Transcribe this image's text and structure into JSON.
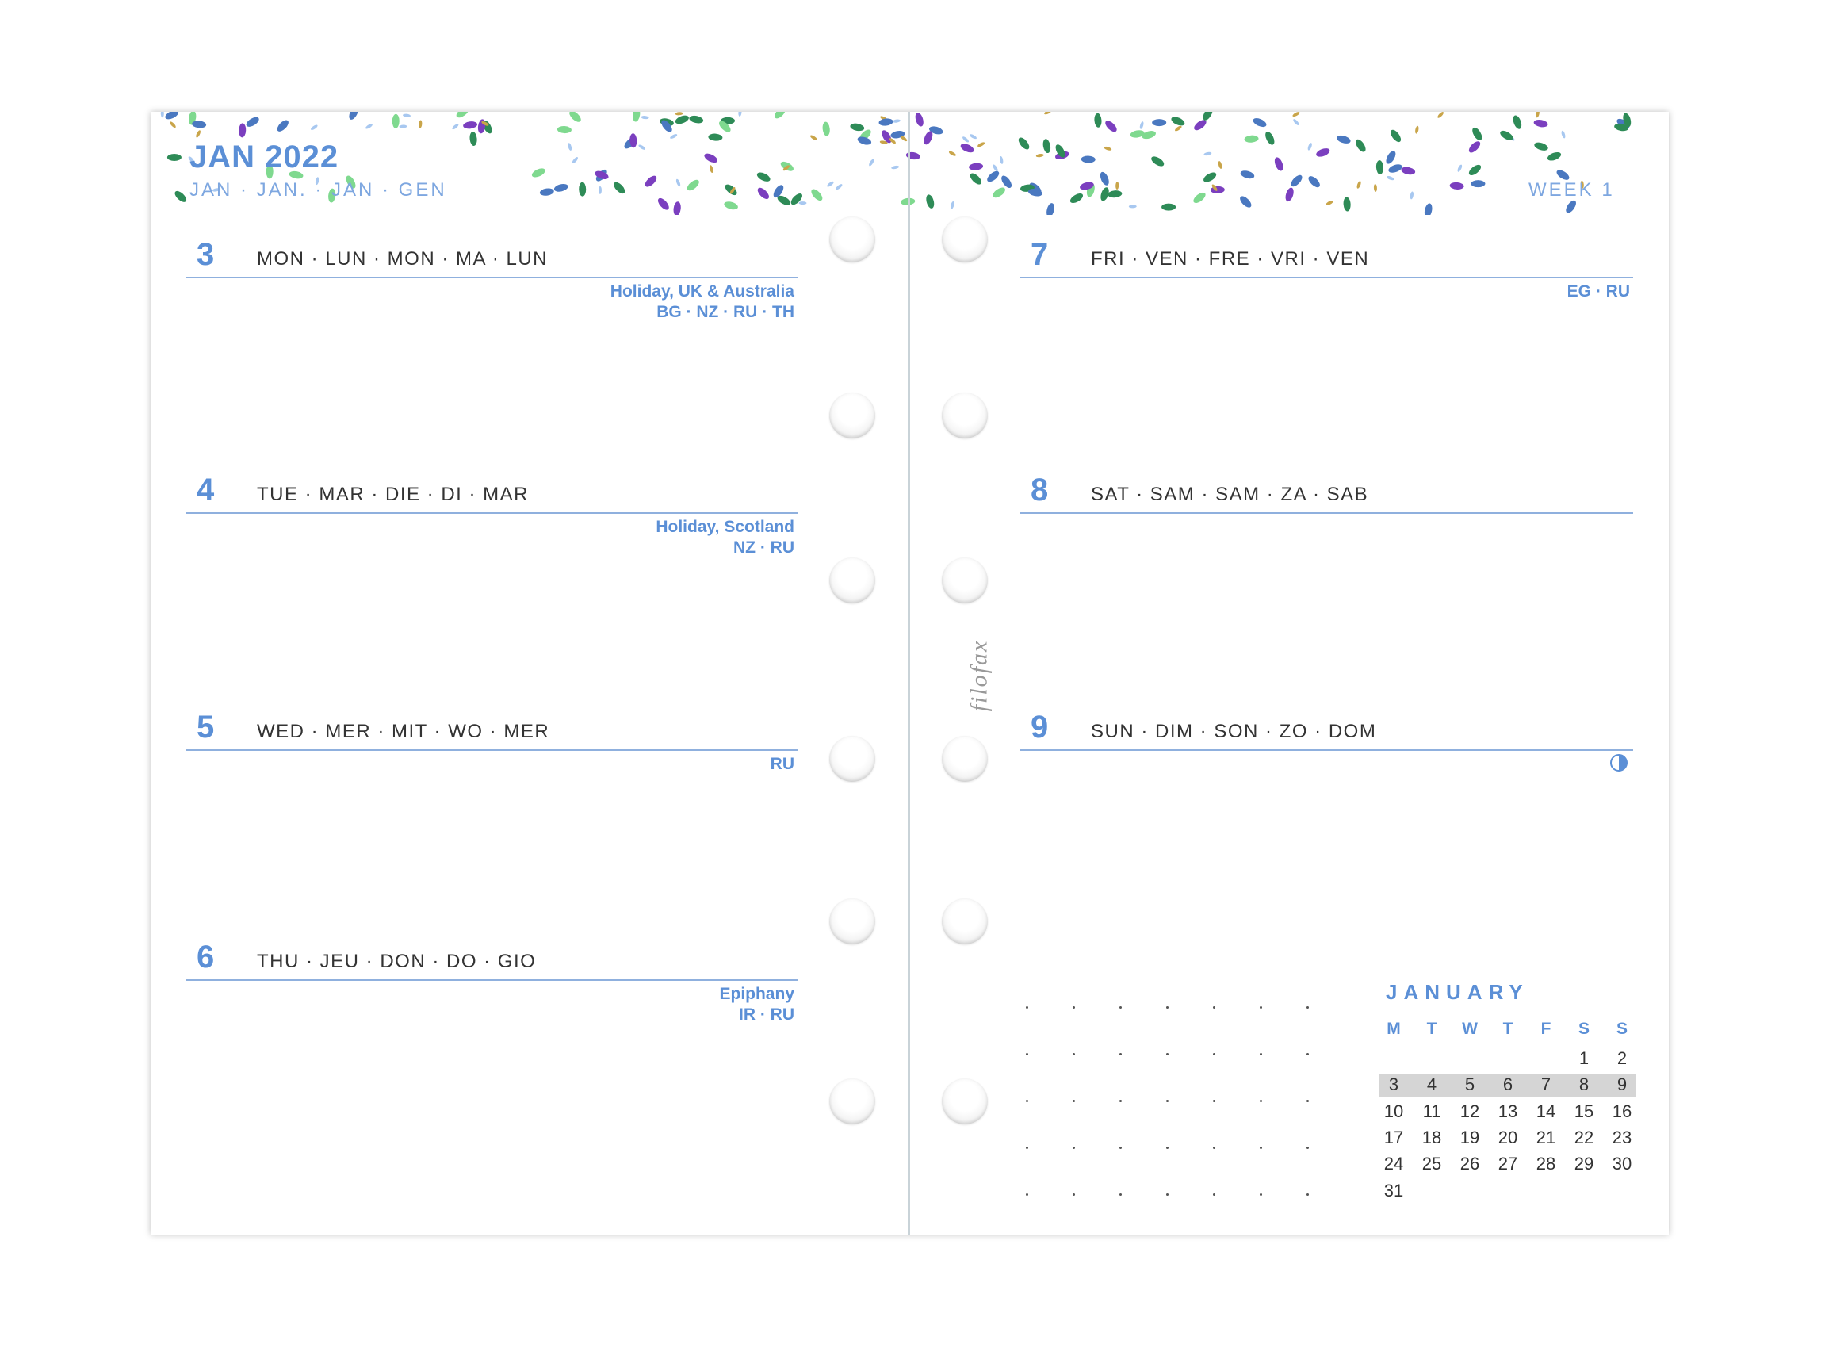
{
  "header": {
    "title": "JAN 2022",
    "subtitle": "JAN · JAN. · JAN · GEN",
    "week": "WEEK 1"
  },
  "logo": "filofax",
  "colors": {
    "accent": "#5b8fd6",
    "leaf_green": "#2e8b57",
    "leaf_light": "#7fd98f",
    "leaf_purple": "#7b3fbf",
    "leaf_blue": "#4a78c0"
  },
  "left_days": [
    {
      "num": "3",
      "names": "MON · LUN · MON · MA · LUN",
      "holiday": "Holiday, UK & Australia",
      "countries": "BG · NZ · RU · TH"
    },
    {
      "num": "4",
      "names": "TUE · MAR · DIE · DI · MAR",
      "holiday": "Holiday, Scotland",
      "countries": "NZ · RU"
    },
    {
      "num": "5",
      "names": "WED · MER · MIT · WO · MER",
      "holiday": "",
      "countries": "RU"
    },
    {
      "num": "6",
      "names": "THU · JEU · DON · DO · GIO",
      "holiday": "Epiphany",
      "countries": "IR · RU"
    }
  ],
  "right_days": [
    {
      "num": "7",
      "names": "FRI · VEN · FRE · VRI · VEN",
      "holiday": "",
      "countries": "EG · RU"
    },
    {
      "num": "8",
      "names": "SAT · SAM · SAM · ZA · SAB",
      "holiday": "",
      "countries": ""
    },
    {
      "num": "9",
      "names": "SUN · DIM · SON · ZO · DOM",
      "holiday": "",
      "countries": "",
      "icon": "half-moon-icon"
    }
  ],
  "mini_calendar": {
    "month": "JANUARY",
    "weekdays": [
      "M",
      "T",
      "W",
      "T",
      "F",
      "S",
      "S"
    ],
    "weeks": [
      [
        "",
        "",
        "",
        "",
        "",
        "1",
        "2"
      ],
      [
        "3",
        "4",
        "5",
        "6",
        "7",
        "8",
        "9"
      ],
      [
        "10",
        "11",
        "12",
        "13",
        "14",
        "15",
        "16"
      ],
      [
        "17",
        "18",
        "19",
        "20",
        "21",
        "22",
        "23"
      ],
      [
        "24",
        "25",
        "26",
        "27",
        "28",
        "29",
        "30"
      ],
      [
        "31",
        "",
        "",
        "",
        "",
        "",
        ""
      ]
    ],
    "highlighted_week": 1
  }
}
